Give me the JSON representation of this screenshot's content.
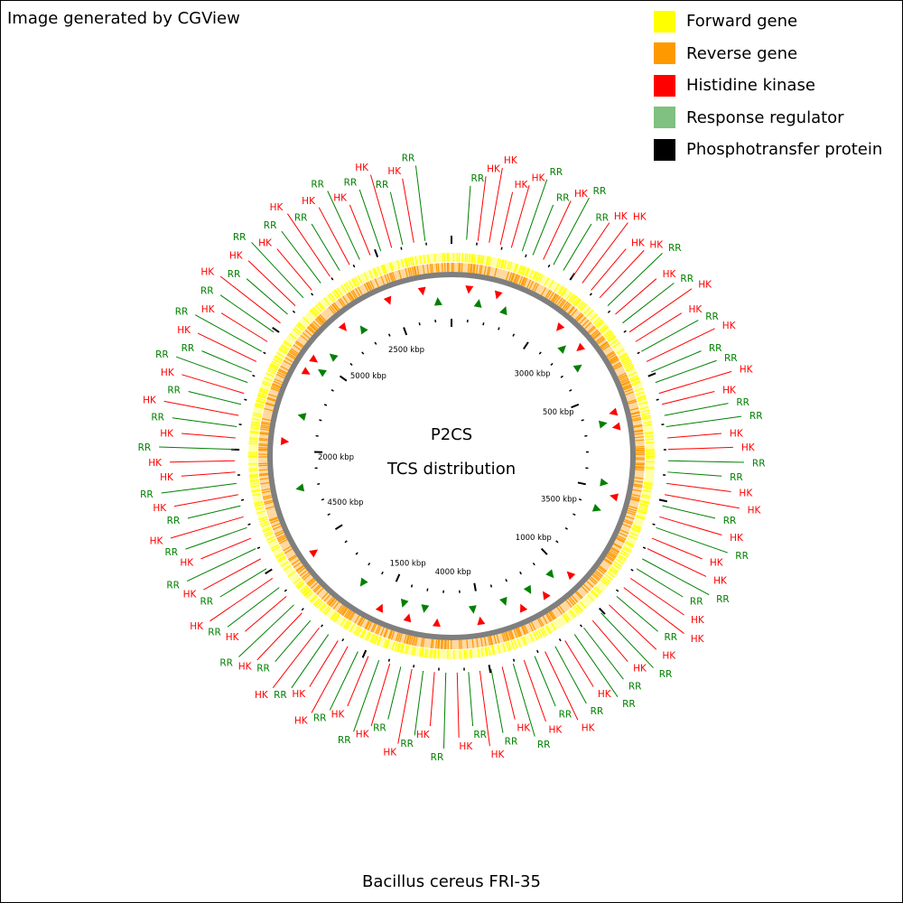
{
  "credit": "Image generated by CGView",
  "legend": [
    {
      "label": "Forward gene",
      "color": "#ffff00"
    },
    {
      "label": "Reverse gene",
      "color": "#ff9900"
    },
    {
      "label": "Histidine kinase",
      "color": "#ff0000"
    },
    {
      "label": "Response regulator",
      "color": "#80c080"
    },
    {
      "label": "Phosphotransfer protein",
      "color": "#000000"
    }
  ],
  "center": {
    "line1": "P2CS",
    "line2": "TCS distribution"
  },
  "caption": "Bacillus cereus FRI-35",
  "colors": {
    "forward": "#ffff00",
    "reverse": "#ff9900",
    "hk": "#ff0000",
    "rr": "#008000",
    "rr_legend": "#80c080",
    "backbone": "#7f7f7f"
  },
  "scale_labels": [
    "500 kbp",
    "1000 kbp",
    "1500 kbp",
    "2000 kbp",
    "2500 kbp",
    "3000 kbp",
    "3500 kbp",
    "4000 kbp",
    "4500 kbp",
    "5000 kbp"
  ],
  "feature_labels": [
    {
      "text": "RR",
      "type": "rr"
    },
    {
      "text": "HK",
      "type": "hk"
    },
    {
      "text": "HK",
      "type": "hk"
    },
    {
      "text": "HK",
      "type": "hk"
    },
    {
      "text": "HK",
      "type": "hk"
    },
    {
      "text": "RR",
      "type": "rr"
    },
    {
      "text": "RR",
      "type": "rr"
    },
    {
      "text": "HK",
      "type": "hk"
    },
    {
      "text": "RR",
      "type": "rr"
    },
    {
      "text": "RR",
      "type": "rr"
    },
    {
      "text": "HK",
      "type": "hk"
    },
    {
      "text": "HK",
      "type": "hk"
    },
    {
      "text": "HK",
      "type": "hk"
    },
    {
      "text": "HK",
      "type": "hk"
    },
    {
      "text": "RR",
      "type": "rr"
    },
    {
      "text": "HK",
      "type": "hk"
    },
    {
      "text": "RR",
      "type": "rr"
    },
    {
      "text": "HK",
      "type": "hk"
    },
    {
      "text": "HK",
      "type": "hk"
    },
    {
      "text": "RR",
      "type": "rr"
    },
    {
      "text": "HK",
      "type": "hk"
    },
    {
      "text": "RR",
      "type": "rr"
    },
    {
      "text": "RR",
      "type": "rr"
    },
    {
      "text": "HK",
      "type": "hk"
    },
    {
      "text": "HK",
      "type": "hk"
    },
    {
      "text": "RR",
      "type": "rr"
    },
    {
      "text": "RR",
      "type": "rr"
    },
    {
      "text": "HK",
      "type": "hk"
    },
    {
      "text": "HK",
      "type": "hk"
    },
    {
      "text": "RR",
      "type": "rr"
    },
    {
      "text": "RR",
      "type": "rr"
    },
    {
      "text": "HK",
      "type": "hk"
    },
    {
      "text": "HK",
      "type": "hk"
    },
    {
      "text": "RR",
      "type": "rr"
    },
    {
      "text": "HK",
      "type": "hk"
    },
    {
      "text": "RR",
      "type": "rr"
    },
    {
      "text": "HK",
      "type": "hk"
    },
    {
      "text": "HK",
      "type": "hk"
    },
    {
      "text": "RR",
      "type": "rr"
    },
    {
      "text": "RR",
      "type": "rr"
    },
    {
      "text": "HK",
      "type": "hk"
    },
    {
      "text": "HK",
      "type": "hk"
    },
    {
      "text": "RR",
      "type": "rr"
    },
    {
      "text": "HK",
      "type": "hk"
    },
    {
      "text": "RR",
      "type": "rr"
    },
    {
      "text": "HK",
      "type": "hk"
    },
    {
      "text": "RR",
      "type": "rr"
    },
    {
      "text": "RR",
      "type": "rr"
    },
    {
      "text": "HK",
      "type": "hk"
    },
    {
      "text": "RR",
      "type": "rr"
    },
    {
      "text": "HK",
      "type": "hk"
    },
    {
      "text": "RR",
      "type": "rr"
    },
    {
      "text": "HK",
      "type": "hk"
    },
    {
      "text": "RR",
      "type": "rr"
    },
    {
      "text": "HK",
      "type": "hk"
    },
    {
      "text": "RR",
      "type": "rr"
    },
    {
      "text": "HK",
      "type": "hk"
    },
    {
      "text": "RR",
      "type": "rr"
    },
    {
      "text": "HK",
      "type": "hk"
    },
    {
      "text": "RR",
      "type": "rr"
    },
    {
      "text": "HK",
      "type": "hk"
    },
    {
      "text": "RR",
      "type": "rr"
    },
    {
      "text": "HK",
      "type": "hk"
    },
    {
      "text": "RR",
      "type": "rr"
    },
    {
      "text": "HK",
      "type": "hk"
    },
    {
      "text": "RR",
      "type": "rr"
    },
    {
      "text": "HK",
      "type": "hk"
    },
    {
      "text": "RR",
      "type": "rr"
    },
    {
      "text": "HK",
      "type": "hk"
    },
    {
      "text": "HK",
      "type": "hk"
    },
    {
      "text": "RR",
      "type": "rr"
    },
    {
      "text": "HK",
      "type": "hk"
    },
    {
      "text": "RR",
      "type": "rr"
    },
    {
      "text": "HK",
      "type": "hk"
    },
    {
      "text": "RR",
      "type": "rr"
    },
    {
      "text": "HK",
      "type": "hk"
    },
    {
      "text": "RR",
      "type": "rr"
    },
    {
      "text": "HK",
      "type": "hk"
    },
    {
      "text": "RR",
      "type": "rr"
    },
    {
      "text": "HK",
      "type": "hk"
    },
    {
      "text": "RR",
      "type": "rr"
    },
    {
      "text": "HK",
      "type": "hk"
    },
    {
      "text": "RR",
      "type": "rr"
    },
    {
      "text": "HK",
      "type": "hk"
    },
    {
      "text": "RR",
      "type": "rr"
    },
    {
      "text": "HK",
      "type": "hk"
    },
    {
      "text": "RR",
      "type": "rr"
    },
    {
      "text": "HK",
      "type": "hk"
    },
    {
      "text": "HK",
      "type": "hk"
    },
    {
      "text": "RR",
      "type": "rr"
    },
    {
      "text": "HK",
      "type": "hk"
    },
    {
      "text": "RR",
      "type": "rr"
    },
    {
      "text": "HK",
      "type": "hk"
    },
    {
      "text": "RR",
      "type": "rr"
    },
    {
      "text": "HK",
      "type": "hk"
    },
    {
      "text": "RR",
      "type": "rr"
    },
    {
      "text": "RR",
      "type": "rr"
    },
    {
      "text": "HK",
      "type": "hk"
    },
    {
      "text": "RR",
      "type": "rr"
    },
    {
      "text": "HK",
      "type": "hk"
    },
    {
      "text": "RR",
      "type": "rr"
    },
    {
      "text": "HK",
      "type": "hk"
    },
    {
      "text": "RR",
      "type": "rr"
    },
    {
      "text": "HK",
      "type": "hk"
    },
    {
      "text": "RR",
      "type": "rr"
    },
    {
      "text": "HK",
      "type": "hk"
    },
    {
      "text": "RR",
      "type": "rr"
    },
    {
      "text": "HK",
      "type": "hk"
    },
    {
      "text": "RR",
      "type": "rr"
    },
    {
      "text": "HK",
      "type": "hk"
    },
    {
      "text": "RR",
      "type": "rr"
    },
    {
      "text": "HK",
      "type": "hk"
    },
    {
      "text": "RR",
      "type": "rr"
    },
    {
      "text": "HK",
      "type": "hk"
    },
    {
      "text": "RR",
      "type": "rr"
    },
    {
      "text": "HK",
      "type": "hk"
    },
    {
      "text": "RR",
      "type": "rr"
    }
  ]
}
